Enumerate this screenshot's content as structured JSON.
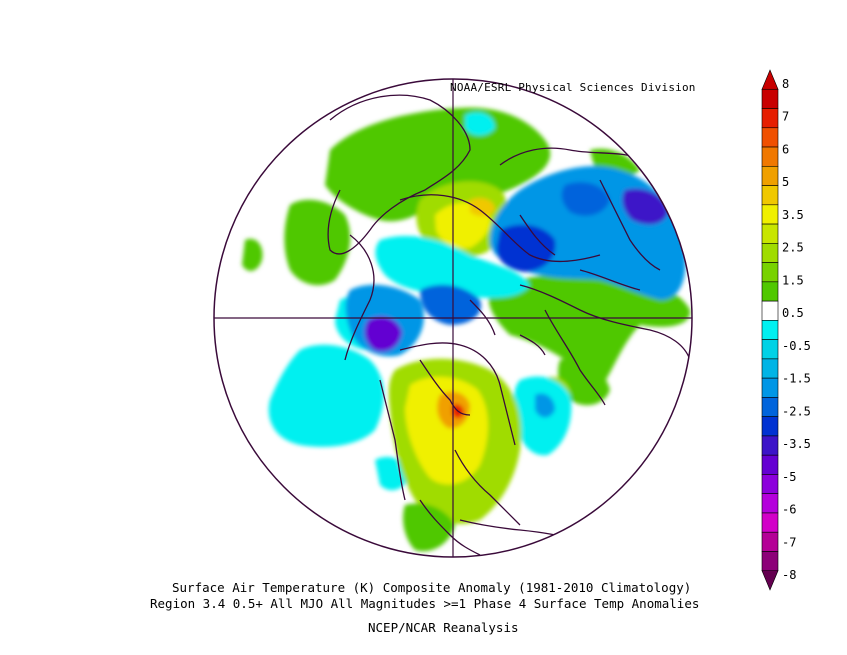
{
  "header": {
    "credit": "NOAA/ESRL Physical Sciences Division"
  },
  "caption": {
    "line1": "Surface Air Temperature (K) Composite Anomaly (1981-2010 Climatology)",
    "line2": "Region 3.4 0.5+ All MJO All Magnitudes >=1   Phase 4 Surface Temp Anomalies",
    "line3": "NCEP/NCAR Reanalysis"
  },
  "colorbar": {
    "labels": [
      "8",
      "7",
      "6",
      "5",
      "3.5",
      "2.5",
      "1.5",
      "0.5",
      "-0.5",
      "-1.5",
      "-2.5",
      "-3.5",
      "-5",
      "-6",
      "-7",
      "-8"
    ],
    "colors": [
      "#e8dca8",
      "#c80000",
      "#e61e00",
      "#f05000",
      "#f07800",
      "#f0a000",
      "#f0c800",
      "#f0f000",
      "#c8e600",
      "#a0dc00",
      "#78d200",
      "#50c800",
      "#ffffff",
      "#00f0f0",
      "#00d2e6",
      "#00b4e6",
      "#0096e6",
      "#0064dc",
      "#0032d2",
      "#3c14c8",
      "#6400d2",
      "#8c00dc",
      "#b400dc",
      "#d200c8",
      "#b40096",
      "#8c0078",
      "#640050"
    ],
    "projection": "north-polar-stereographic",
    "units": "K"
  }
}
